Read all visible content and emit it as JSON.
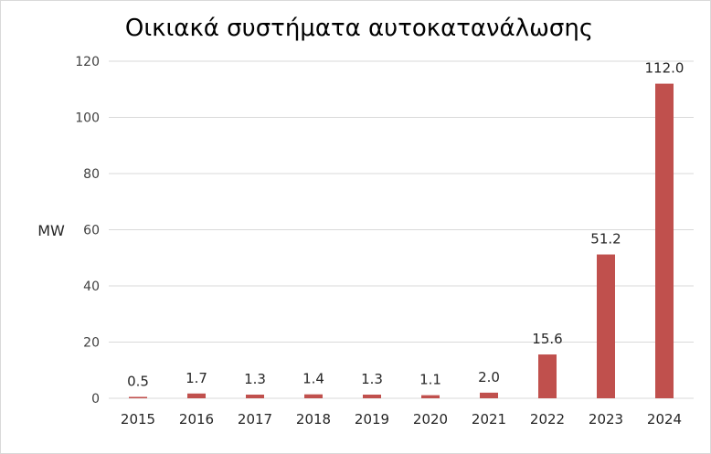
{
  "chart_data": {
    "type": "bar",
    "title": "Οικιακά συστήματα αυτοκατανάλωσης",
    "ylabel": "MW",
    "xlabel": "",
    "categories": [
      "2015",
      "2016",
      "2017",
      "2018",
      "2019",
      "2020",
      "2021",
      "2022",
      "2023",
      "2024"
    ],
    "values": [
      0.5,
      1.7,
      1.3,
      1.4,
      1.3,
      1.1,
      2.0,
      15.6,
      51.2,
      112.0
    ],
    "data_labels": [
      "0.5",
      "1.7",
      "1.3",
      "1.4",
      "1.3",
      "1.1",
      "2.0",
      "15.6",
      "51.2",
      "112.0"
    ],
    "ylim": [
      0,
      120
    ],
    "yticks": [
      0,
      20,
      40,
      60,
      80,
      100,
      120
    ],
    "grid": true,
    "legend": "none",
    "bar_color": "#c0504d"
  }
}
